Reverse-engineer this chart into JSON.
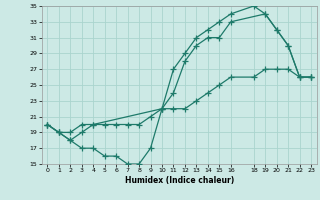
{
  "title": "",
  "xlabel": "Humidex (Indice chaleur)",
  "xlim": [
    -0.5,
    23.5
  ],
  "ylim": [
    15,
    35
  ],
  "xticks": [
    0,
    1,
    2,
    3,
    4,
    5,
    6,
    7,
    8,
    9,
    10,
    11,
    12,
    13,
    14,
    15,
    16,
    18,
    19,
    20,
    21,
    22,
    23
  ],
  "yticks": [
    15,
    17,
    19,
    21,
    23,
    25,
    27,
    29,
    31,
    33,
    35
  ],
  "bg_color": "#cce9e5",
  "grid_color": "#aad4ce",
  "line_color": "#1e7a6a",
  "line1_x": [
    0,
    1,
    2,
    3,
    4,
    5,
    6,
    7,
    8,
    9,
    10,
    11,
    12,
    13,
    14,
    15,
    16,
    19,
    20,
    21,
    22,
    23
  ],
  "line1_y": [
    20,
    19,
    18,
    17,
    17,
    16,
    16,
    15,
    15,
    17,
    22,
    24,
    28,
    30,
    31,
    31,
    33,
    34,
    32,
    30,
    26,
    26
  ],
  "line2_x": [
    0,
    1,
    2,
    3,
    4,
    10,
    11,
    12,
    13,
    14,
    15,
    16,
    18,
    19,
    20,
    21,
    22,
    23
  ],
  "line2_y": [
    20,
    19,
    19,
    20,
    20,
    22,
    27,
    29,
    31,
    32,
    33,
    34,
    35,
    34,
    32,
    30,
    26,
    26
  ],
  "line3_x": [
    0,
    1,
    2,
    3,
    4,
    5,
    6,
    7,
    8,
    9,
    10,
    11,
    12,
    13,
    14,
    15,
    16,
    18,
    19,
    20,
    21,
    22,
    23
  ],
  "line3_y": [
    20,
    19,
    18,
    19,
    20,
    20,
    20,
    20,
    20,
    21,
    22,
    22,
    22,
    23,
    24,
    25,
    26,
    26,
    27,
    27,
    27,
    26,
    26
  ]
}
